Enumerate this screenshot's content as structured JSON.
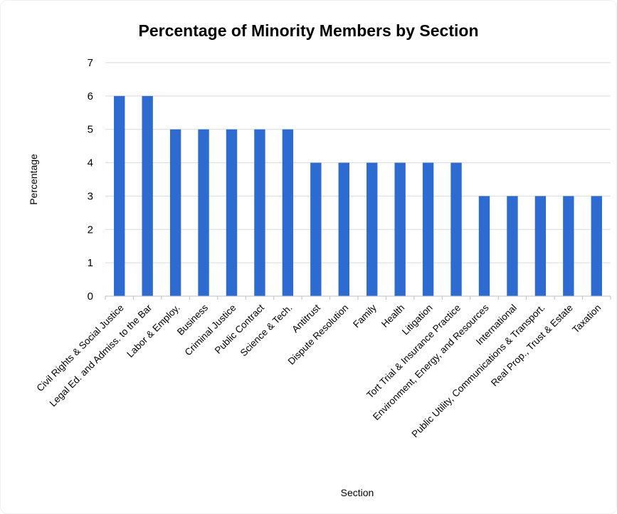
{
  "chart_data": {
    "type": "bar",
    "title": "Percentage of Minority Members by Section",
    "xlabel": "Section",
    "ylabel": "Percentage",
    "ylim": [
      0,
      7
    ],
    "yticks": [
      0,
      1,
      2,
      3,
      4,
      5,
      6,
      7
    ],
    "grid": true,
    "legend": "none",
    "bar_color": "#2e6bd0",
    "categories": [
      "Civil Rights & Social Justice",
      "Legal Ed. and Admiss. to the Bar",
      "Labor & Employ.",
      "Business",
      "Criminal Justice",
      "Public Contract",
      "Science & Tech.",
      "Antitrust",
      "Dispute Resolution",
      "Family",
      "Health",
      "Litigation",
      "Tort Trial & Insurance Practice",
      "Environment, Energy, and Resources",
      "International",
      "Public Utility, Communications & Transport.",
      "Real Prop., Trust & Estate",
      "Taxation"
    ],
    "values": [
      6,
      6,
      5,
      5,
      5,
      5,
      5,
      4,
      4,
      4,
      4,
      4,
      4,
      3,
      3,
      3,
      3,
      3
    ]
  }
}
